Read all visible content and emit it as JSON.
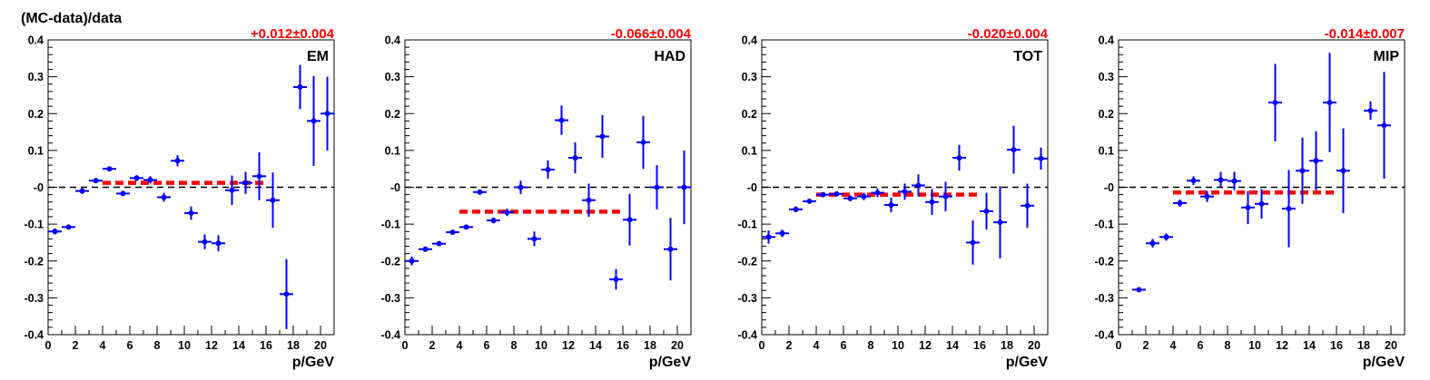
{
  "chart_data": {
    "type": "scatter",
    "ylabel": "(MC-data)/data",
    "xlabel": "p/GeV",
    "xlim": [
      0,
      21
    ],
    "ylim": [
      -0.4,
      0.4
    ],
    "xticks": [
      "0",
      "2",
      "4",
      "6",
      "8",
      "10",
      "12",
      "14",
      "16",
      "18",
      "20"
    ],
    "yticks": [
      "-0.4",
      "-0.3",
      "-0.2",
      "-0.1",
      "-0",
      "0.1",
      "0.2",
      "0.3",
      "0.4"
    ],
    "colors": {
      "points": "#0000ff",
      "fit": "#ff0000",
      "reference": "#000000"
    },
    "panels": [
      {
        "label": "EM",
        "fit_text": "+0.012±0.004",
        "fit": {
          "value": 0.012,
          "x_range": [
            4,
            16
          ]
        },
        "points": [
          {
            "x": 0.5,
            "y": -0.12,
            "err": 0.008
          },
          {
            "x": 1.5,
            "y": -0.108,
            "err": 0.006
          },
          {
            "x": 2.5,
            "y": -0.01,
            "err": 0.008
          },
          {
            "x": 3.5,
            "y": 0.018,
            "err": 0.007
          },
          {
            "x": 4.5,
            "y": 0.05,
            "err": 0.006
          },
          {
            "x": 5.5,
            "y": -0.017,
            "err": 0.007
          },
          {
            "x": 6.5,
            "y": 0.025,
            "err": 0.008
          },
          {
            "x": 7.5,
            "y": 0.02,
            "err": 0.01
          },
          {
            "x": 8.5,
            "y": -0.027,
            "err": 0.012
          },
          {
            "x": 9.5,
            "y": 0.072,
            "err": 0.015
          },
          {
            "x": 10.5,
            "y": -0.07,
            "err": 0.018
          },
          {
            "x": 11.5,
            "y": -0.148,
            "err": 0.02
          },
          {
            "x": 12.5,
            "y": -0.152,
            "err": 0.022
          },
          {
            "x": 13.5,
            "y": -0.008,
            "err": 0.04
          },
          {
            "x": 14.5,
            "y": 0.012,
            "err": 0.03
          },
          {
            "x": 15.5,
            "y": 0.03,
            "err": 0.065
          },
          {
            "x": 16.5,
            "y": -0.035,
            "err": 0.075
          },
          {
            "x": 17.5,
            "y": -0.29,
            "err": 0.095
          },
          {
            "x": 18.5,
            "y": 0.272,
            "err": 0.06
          },
          {
            "x": 19.5,
            "y": 0.18,
            "err": 0.122
          },
          {
            "x": 20.5,
            "y": 0.2,
            "err": 0.1
          }
        ]
      },
      {
        "label": "HAD",
        "fit_text": "-0.066±0.004",
        "fit": {
          "value": -0.066,
          "x_range": [
            4,
            16
          ]
        },
        "points": [
          {
            "x": 0.5,
            "y": -0.2,
            "err": 0.012
          },
          {
            "x": 1.5,
            "y": -0.168,
            "err": 0.006
          },
          {
            "x": 2.5,
            "y": -0.153,
            "err": 0.005
          },
          {
            "x": 3.5,
            "y": -0.122,
            "err": 0.005
          },
          {
            "x": 4.5,
            "y": -0.108,
            "err": 0.005
          },
          {
            "x": 5.5,
            "y": -0.013,
            "err": 0.006
          },
          {
            "x": 6.5,
            "y": -0.09,
            "err": 0.008
          },
          {
            "x": 7.5,
            "y": -0.068,
            "err": 0.01
          },
          {
            "x": 8.5,
            "y": 0.0,
            "err": 0.018
          },
          {
            "x": 9.5,
            "y": -0.14,
            "err": 0.02
          },
          {
            "x": 10.5,
            "y": 0.048,
            "err": 0.025
          },
          {
            "x": 11.5,
            "y": 0.182,
            "err": 0.04
          },
          {
            "x": 12.5,
            "y": 0.08,
            "err": 0.042
          },
          {
            "x": 13.5,
            "y": -0.035,
            "err": 0.045
          },
          {
            "x": 14.5,
            "y": 0.138,
            "err": 0.058
          },
          {
            "x": 15.5,
            "y": -0.25,
            "err": 0.028
          },
          {
            "x": 16.5,
            "y": -0.088,
            "err": 0.07
          },
          {
            "x": 17.5,
            "y": 0.122,
            "err": 0.072
          },
          {
            "x": 18.5,
            "y": 0.0,
            "err": 0.06
          },
          {
            "x": 19.5,
            "y": -0.168,
            "err": 0.085
          },
          {
            "x": 20.5,
            "y": 0.0,
            "err": 0.1
          }
        ]
      },
      {
        "label": "TOT",
        "fit_text": "-0.020±0.004",
        "fit": {
          "value": -0.02,
          "x_range": [
            4,
            16
          ]
        },
        "points": [
          {
            "x": 0.5,
            "y": -0.135,
            "err": 0.018
          },
          {
            "x": 1.5,
            "y": -0.125,
            "err": 0.01
          },
          {
            "x": 2.5,
            "y": -0.06,
            "err": 0.008
          },
          {
            "x": 3.5,
            "y": -0.038,
            "err": 0.006
          },
          {
            "x": 4.5,
            "y": -0.02,
            "err": 0.006
          },
          {
            "x": 5.5,
            "y": -0.018,
            "err": 0.006
          },
          {
            "x": 6.5,
            "y": -0.03,
            "err": 0.008
          },
          {
            "x": 7.5,
            "y": -0.025,
            "err": 0.01
          },
          {
            "x": 8.5,
            "y": -0.015,
            "err": 0.012
          },
          {
            "x": 9.5,
            "y": -0.048,
            "err": 0.02
          },
          {
            "x": 10.5,
            "y": -0.012,
            "err": 0.022
          },
          {
            "x": 11.5,
            "y": 0.005,
            "err": 0.03
          },
          {
            "x": 12.5,
            "y": -0.04,
            "err": 0.035
          },
          {
            "x": 13.5,
            "y": -0.025,
            "err": 0.04
          },
          {
            "x": 14.5,
            "y": 0.08,
            "err": 0.035
          },
          {
            "x": 15.5,
            "y": -0.15,
            "err": 0.06
          },
          {
            "x": 16.5,
            "y": -0.065,
            "err": 0.05
          },
          {
            "x": 17.5,
            "y": -0.095,
            "err": 0.098
          },
          {
            "x": 18.5,
            "y": 0.102,
            "err": 0.065
          },
          {
            "x": 19.5,
            "y": -0.05,
            "err": 0.06
          },
          {
            "x": 20.5,
            "y": 0.078,
            "err": 0.03
          }
        ]
      },
      {
        "label": "MIP",
        "fit_text": "-0.014±0.007",
        "fit": {
          "value": -0.014,
          "x_range": [
            4,
            16
          ]
        },
        "points": [
          {
            "x": 1.5,
            "y": -0.278,
            "err": 0.005
          },
          {
            "x": 2.5,
            "y": -0.152,
            "err": 0.012
          },
          {
            "x": 3.5,
            "y": -0.135,
            "err": 0.01
          },
          {
            "x": 4.5,
            "y": -0.043,
            "err": 0.01
          },
          {
            "x": 5.5,
            "y": 0.018,
            "err": 0.012
          },
          {
            "x": 6.5,
            "y": -0.025,
            "err": 0.015
          },
          {
            "x": 7.5,
            "y": 0.02,
            "err": 0.022
          },
          {
            "x": 8.5,
            "y": 0.017,
            "err": 0.025
          },
          {
            "x": 9.5,
            "y": -0.055,
            "err": 0.045
          },
          {
            "x": 10.5,
            "y": -0.045,
            "err": 0.04
          },
          {
            "x": 11.5,
            "y": 0.23,
            "err": 0.105
          },
          {
            "x": 12.5,
            "y": -0.058,
            "err": 0.105
          },
          {
            "x": 13.5,
            "y": 0.045,
            "err": 0.09
          },
          {
            "x": 14.5,
            "y": 0.072,
            "err": 0.08
          },
          {
            "x": 15.5,
            "y": 0.23,
            "err": 0.135
          },
          {
            "x": 16.5,
            "y": 0.045,
            "err": 0.115
          },
          {
            "x": 18.5,
            "y": 0.208,
            "err": 0.025
          },
          {
            "x": 19.5,
            "y": 0.168,
            "err": 0.145
          }
        ]
      }
    ]
  }
}
